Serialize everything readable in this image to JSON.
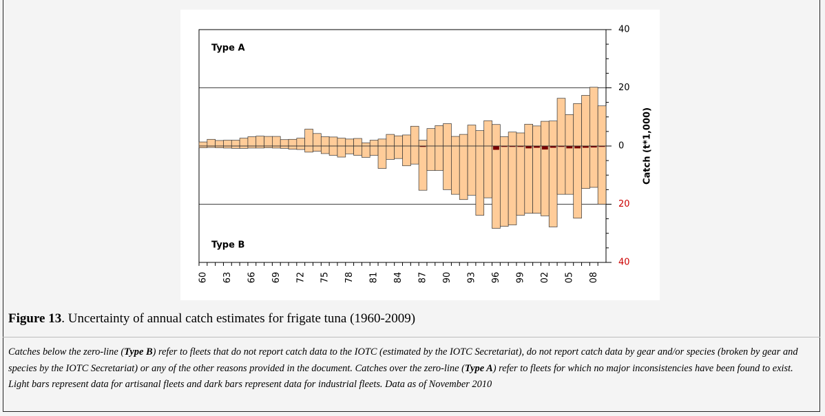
{
  "chart_data": {
    "type": "diverging-bar",
    "categories": [
      "60",
      null,
      null,
      "63",
      null,
      null,
      "66",
      null,
      null,
      "69",
      null,
      null,
      "72",
      null,
      null,
      "75",
      null,
      null,
      "78",
      null,
      null,
      "81",
      null,
      null,
      "84",
      null,
      null,
      "87",
      null,
      null,
      "90",
      null,
      null,
      "93",
      null,
      null,
      "96",
      null,
      null,
      "99",
      null,
      null,
      "02",
      null,
      null,
      "05",
      null,
      null,
      "08",
      null
    ],
    "series": [
      {
        "color": "#ffcc99",
        "values": [
          1.4,
          2.3,
          1.9,
          2.0,
          2.0,
          2.7,
          3.2,
          3.4,
          3.3,
          3.3,
          2.2,
          2.3,
          2.7,
          5.8,
          4.3,
          3.2,
          3.1,
          2.7,
          2.4,
          2.6,
          1.1,
          2.0,
          2.4,
          4.0,
          3.5,
          3.8,
          6.8,
          2.0,
          6.0,
          7.0,
          7.7,
          3.3,
          4.0,
          7.2,
          5.3,
          8.7,
          7.4,
          3.2,
          4.8,
          4.5,
          7.5,
          6.9,
          8.5,
          8.6,
          16.4,
          10.8,
          14.6,
          17.4,
          20.2,
          13.8
        ]
      },
      {
        "color": "#ffcc99",
        "values": [
          -0.6,
          -0.5,
          -0.6,
          -0.7,
          -0.8,
          -0.8,
          -0.7,
          -0.7,
          -0.6,
          -0.7,
          -0.8,
          -1.1,
          -1.2,
          -2.1,
          -1.8,
          -2.6,
          -3.2,
          -3.8,
          -2.7,
          -3.2,
          -3.9,
          -3.2,
          -7.7,
          -4.6,
          -4.3,
          -6.8,
          -6.2,
          -15.2,
          -8.4,
          -8.4,
          -15.0,
          -16.6,
          -18.4,
          -16.9,
          -23.8,
          -17.8,
          -28.3,
          -27.6,
          -27.1,
          -23.8,
          -23.1,
          -23.1,
          -24.0,
          -27.8,
          -16.6,
          -16.6,
          -24.8,
          -14.6,
          -14.2,
          -20.0
        ]
      },
      {
        "color": "#7a0000",
        "values": [
          0,
          0,
          0,
          0,
          0,
          0,
          0,
          0,
          0,
          0,
          0,
          0,
          0,
          0,
          0,
          0,
          0,
          0,
          0,
          0,
          0,
          0,
          0,
          0,
          0,
          0,
          0,
          -0.3,
          0,
          0,
          0,
          0,
          0,
          0,
          0,
          0,
          -1.3,
          -0.3,
          -0.3,
          -0.3,
          -0.8,
          -0.6,
          -1.2,
          -0.6,
          -0.3,
          -0.8,
          -0.8,
          -0.6,
          -0.5,
          -0.3
        ]
      }
    ],
    "ylim": [
      -40,
      40
    ],
    "yticks": [
      {
        "value": -40,
        "label": "40"
      },
      {
        "value": -20,
        "label": "20"
      },
      0,
      20,
      40
    ],
    "negative_tick_color": "#cc0000",
    "ylabel": "Catch (t*1,000)",
    "annotations": [
      "Type A",
      "Type B"
    ]
  },
  "caption": {
    "label": "Figure 13",
    "text": ". Uncertainty of annual catch estimates for frigate tuna (1960-2009)"
  },
  "note": [
    "Catches below the zero-line (",
    "Type B",
    ") refer to fleets that do not report catch data to the IOTC (estimated by the IOTC Secretariat), do not report catch data by gear and/or species (broken by gear and species by the IOTC Secretariat) or any of the other reasons provided in the document. Catches over the zero-line (",
    "Type A",
    ") refer to fleets for which no major inconsistencies have been found to exist. Light bars represent data for artisanal fleets and dark bars represent data for industrial fleets. Data as of November 2010"
  ]
}
